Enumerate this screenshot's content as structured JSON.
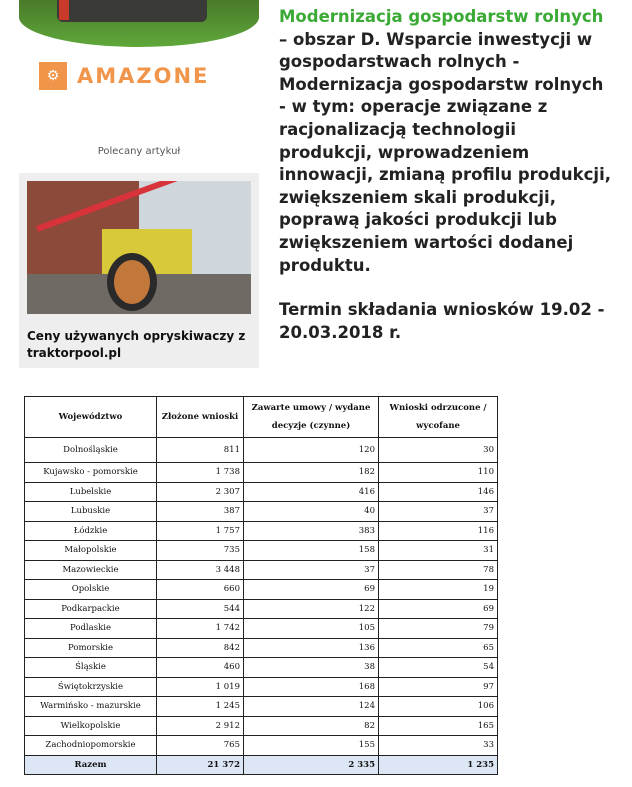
{
  "sidebar": {
    "brand": "AMAZONE",
    "recommended_label": "Polecany artykuł",
    "recommended_article": {
      "title": "Ceny używanych opryskiwaczy z traktorpool.pl"
    }
  },
  "article": {
    "highlight": "Modernizacja gospodarstw rolnych",
    "body": " – obszar D. Wsparcie inwestycji w gospodarstwach rolnych - Modernizacja gospodarstw rolnych - w tym: operacje związane z racjonalizacją technologii produkcji, wprowadzeniem innowacji, zmianą profilu produkcji, zwiększeniem skali produkcji, poprawą jakości produkcji lub zwiększeniem wartości dodanej produktu.",
    "deadline": "Termin składania wniosków 19.02 - 20.03.2018 r."
  },
  "table": {
    "headers": [
      "Województwo",
      "Złożone wnioski",
      "Zawarte umowy / wydane decyzje (czynne)",
      "Wnioski odrzucone / wycofane"
    ],
    "rows": [
      [
        "Dolnośląskie",
        "811",
        "120",
        "30"
      ],
      [
        "Kujawsko - pomorskie",
        "1 738",
        "182",
        "110"
      ],
      [
        "Lubelskie",
        "2 307",
        "416",
        "146"
      ],
      [
        "Lubuskie",
        "387",
        "40",
        "37"
      ],
      [
        "Łódzkie",
        "1 757",
        "383",
        "116"
      ],
      [
        "Małopolskie",
        "735",
        "158",
        "31"
      ],
      [
        "Mazowieckie",
        "3 448",
        "37",
        "78"
      ],
      [
        "Opolskie",
        "660",
        "69",
        "19"
      ],
      [
        "Podkarpackie",
        "544",
        "122",
        "69"
      ],
      [
        "Podlaskie",
        "1 742",
        "105",
        "79"
      ],
      [
        "Pomorskie",
        "842",
        "136",
        "65"
      ],
      [
        "Śląskie",
        "460",
        "38",
        "54"
      ],
      [
        "Świętokrzyskie",
        "1 019",
        "168",
        "97"
      ],
      [
        "Warmińsko - mazurskie",
        "1 245",
        "124",
        "106"
      ],
      [
        "Wielkopolskie",
        "2 912",
        "82",
        "165"
      ],
      [
        "Zachodniopomorskie",
        "765",
        "155",
        "33"
      ]
    ],
    "total": [
      "Razem",
      "21 372",
      "2 335",
      "1 235"
    ]
  },
  "colors": {
    "highlight": "#3aaa35",
    "brand": "#f0954a",
    "total_row": "#dce6f5"
  }
}
